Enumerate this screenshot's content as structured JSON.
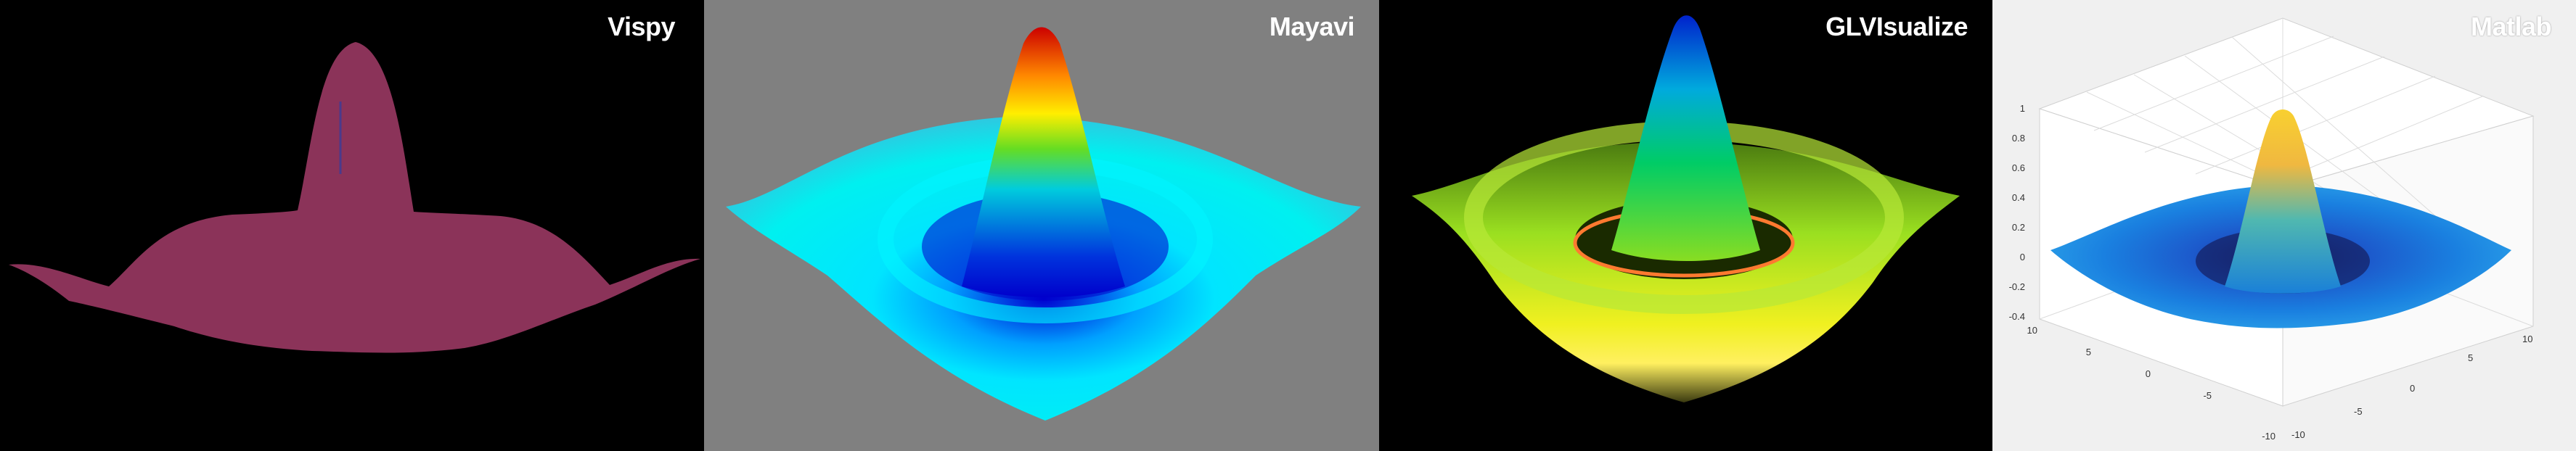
{
  "panels": [
    {
      "label": "Vispy"
    },
    {
      "label": "Mayavi"
    },
    {
      "label": "GLVIsualize"
    },
    {
      "label": "Matlab"
    }
  ],
  "matlab_axes": {
    "z_ticks": [
      "1",
      "0.8",
      "0.6",
      "0.4",
      "0.2",
      "0",
      "-0.2",
      "-0.4"
    ],
    "x_ticks": [
      "10",
      "5",
      "0",
      "-5",
      "-10"
    ],
    "y_ticks": [
      "10",
      "5",
      "0",
      "-5",
      "-10"
    ]
  },
  "colors": {
    "vispy_bg": "#000000",
    "vispy_surface": "#8b3359",
    "mayavi_bg": "#808080",
    "glvisualize_bg": "#000000",
    "matlab_bg": "#f0f0f0"
  }
}
